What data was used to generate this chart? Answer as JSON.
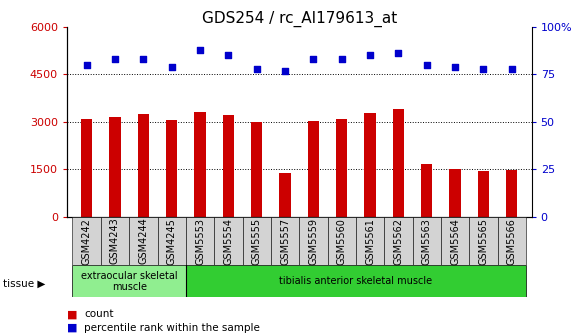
{
  "title": "GDS254 / rc_AI179613_at",
  "categories": [
    "GSM4242",
    "GSM4243",
    "GSM4244",
    "GSM4245",
    "GSM5553",
    "GSM5554",
    "GSM5555",
    "GSM5557",
    "GSM5559",
    "GSM5560",
    "GSM5561",
    "GSM5562",
    "GSM5563",
    "GSM5564",
    "GSM5565",
    "GSM5566"
  ],
  "bar_values": [
    3100,
    3150,
    3250,
    3050,
    3300,
    3200,
    2980,
    1370,
    3020,
    3100,
    3280,
    3400,
    1680,
    1500,
    1430,
    1470
  ],
  "scatter_values": [
    80,
    83,
    83,
    79,
    88,
    85,
    78,
    77,
    83,
    83,
    85,
    86,
    80,
    79,
    78,
    78
  ],
  "bar_color": "#cc0000",
  "scatter_color": "#0000cc",
  "ylim_left": [
    0,
    6000
  ],
  "ylim_right": [
    0,
    100
  ],
  "yticks_left": [
    0,
    1500,
    3000,
    4500,
    6000
  ],
  "yticks_right": [
    0,
    25,
    50,
    75,
    100
  ],
  "yticklabels_left": [
    "0",
    "1500",
    "3000",
    "4500",
    "6000"
  ],
  "yticklabels_right": [
    "0",
    "25",
    "50",
    "75",
    "100%"
  ],
  "tissue_groups": [
    {
      "label": "extraocular skeletal\nmuscle",
      "start": 0,
      "end": 4,
      "color": "#90ee90"
    },
    {
      "label": "tibialis anterior skeletal muscle",
      "start": 4,
      "end": 16,
      "color": "#32cd32"
    }
  ],
  "tissue_label": "tissue",
  "legend_items": [
    {
      "label": "count",
      "color": "#cc0000"
    },
    {
      "label": "percentile rank within the sample",
      "color": "#0000cc"
    }
  ],
  "grid_color": "#000000",
  "background_color": "#ffffff",
  "title_fontsize": 11,
  "axis_label_color_left": "#cc0000",
  "axis_label_color_right": "#0000cc",
  "xtick_bg_color": "#d3d3d3",
  "bar_width": 0.4
}
